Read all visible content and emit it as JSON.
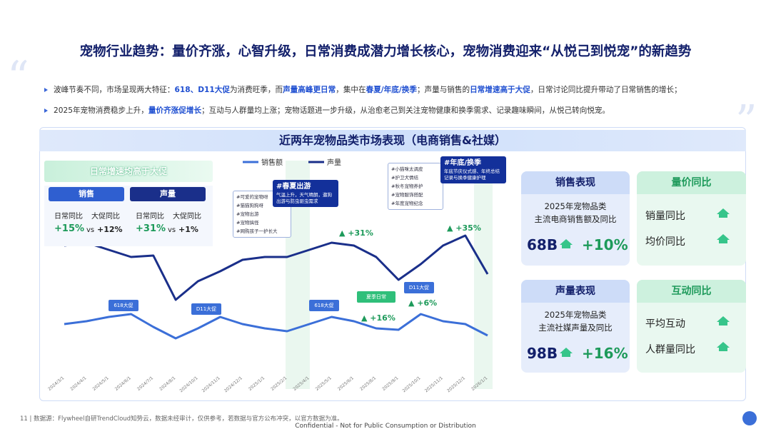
{
  "header": {
    "title": "宠物行业趋势：量价齐涨，心智升级，日常消费成潜力增长核心，宠物消费迎来“从悦己到悦宠”的新趋势"
  },
  "bullets": [
    [
      "波峰节奏不同，市场呈现两大特征：",
      "618、D11大促",
      "为消费旺季，而",
      "声量高峰更日常",
      "，集中在",
      "春夏/年底/换季",
      "；声量与销售的",
      "日常增速高于大促",
      "，日常讨论同比提升带动了日常销售的增长；"
    ],
    [
      "2025年宠物消费稳步上升，",
      "量价齐涨促增长",
      "；互动与人群量均上涨；宠物话题进一步升级，从治愈老己到关注宠物健康和换季需求、记录趣味瞬间，从悦己转向悦宠。"
    ]
  ],
  "chart_data": {
    "type": "line",
    "title": "近两年宠物品类市场表现（电商销售&社媒）",
    "categories": [
      "2024/3/1",
      "2024/4/1",
      "2024/5/1",
      "2024/6/1",
      "2024/7/1",
      "2024/8/1",
      "2024/10/1",
      "2024/11/1",
      "2024/12/1",
      "2025/1/1",
      "2025/2/1",
      "2025/4/1",
      "2025/5/1",
      "2025/6/1",
      "2025/8/1",
      "2025/9/1",
      "2025/10/1",
      "2025/11/1",
      "2025/12/1",
      "2026/1/1"
    ],
    "series": [
      {
        "name": "销售额",
        "color": "#3b6fd8",
        "values": [
          13,
          15,
          18,
          20,
          11,
          3,
          10,
          18,
          13,
          10,
          8,
          13,
          18,
          15,
          10,
          9,
          20,
          15,
          13,
          5
        ]
      },
      {
        "name": "声量",
        "color": "#1a2f8a",
        "values": [
          68,
          70,
          65,
          60,
          61,
          30,
          43,
          50,
          58,
          60,
          60,
          65,
          70,
          68,
          60,
          44,
          55,
          68,
          75,
          48
        ]
      }
    ],
    "ylim": [
      0,
      90
    ],
    "summary": {
      "title": "日常增速均高于大促",
      "groups": [
        {
          "name": "销售",
          "daily_label": "日常同比",
          "promo_label": "大促同比",
          "daily": "+15%",
          "vs": "vs",
          "promo": "+12%"
        },
        {
          "name": "声量",
          "daily_label": "日常同比",
          "promo_label": "大促同比",
          "daily": "+31%",
          "vs": "vs",
          "promo": "+1%"
        }
      ]
    },
    "events": [
      "618大促",
      "D11大促",
      "618大促",
      "夏季日常",
      "D11大促"
    ],
    "growth_labels": [
      "▲ +31%",
      "▲ +35%",
      "▲ +16%",
      "▲ +6%"
    ],
    "callouts": [
      {
        "title": "#春夏出游",
        "text": "气温上升，天气晴朗，遛狗出游与防虫驱虫需求"
      },
      {
        "title": "#年底/换季",
        "text": "年底节庆仪式感、年终总结记录与换季健康护理"
      }
    ],
    "tags": [
      [
        "#可爱的宠物呀",
        "#猫猫狗狗呀",
        "#宠物出游",
        "#宠物搞怪",
        "#网购孩子一护长大"
      ],
      [
        "#小猫咪太调皮",
        "#护卫犬情结",
        "#秋冬宠物养护",
        "#宠物服饰搭配",
        "#年度宠物纪念"
      ]
    ]
  },
  "panels": [
    {
      "title": "销售表现",
      "line1": "2025年宠物品类",
      "line2": "主流电商销售额及同比",
      "value": "68B",
      "growth": "+10%"
    },
    {
      "title": "量价同比",
      "items": [
        "销量同比",
        "均价同比"
      ]
    },
    {
      "title": "声量表现",
      "line1": "2025年宠物品类",
      "line2": "主流社媒声量及同比",
      "value": "98B",
      "growth": "+16%"
    },
    {
      "title": "互动同比",
      "items": [
        "平均互动",
        "人群量同比"
      ]
    }
  ],
  "footer": {
    "source": "11  |  数据源：Flywheel自研TrendCloud知势云，数据未经审计，仅供参考，若数据与官方公布冲突，以官方数据为准。",
    "confidential": "Confidential - Not for Public Consumption or Distribution"
  }
}
